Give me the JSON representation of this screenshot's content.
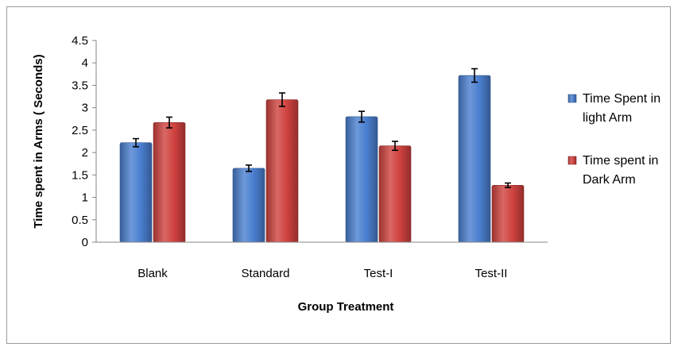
{
  "chart_data": {
    "type": "bar",
    "title": "",
    "xlabel": "Group Treatment",
    "ylabel": "Time spent in Arms ( Seconds)",
    "categories": [
      "Blank",
      "Standard",
      "Test-I",
      "Test-II"
    ],
    "ylim": [
      0,
      4.5
    ],
    "yticks": [
      0,
      0.5,
      1,
      1.5,
      2,
      2.5,
      3,
      3.5,
      4,
      4.5
    ],
    "ytick_labels": [
      "0",
      "0.5",
      "1",
      "1.5",
      "2",
      "2.5",
      "3",
      "3.5",
      "4",
      "4.5"
    ],
    "grid": false,
    "legend_position": "right",
    "series": [
      {
        "name": "Time Spent in light Arm",
        "legend_lines": [
          "Time Spent in",
          "light Arm"
        ],
        "color": "#4a7fd0",
        "values": [
          2.22,
          1.65,
          2.8,
          3.72
        ],
        "errors": [
          0.09,
          0.07,
          0.12,
          0.15
        ]
      },
      {
        "name": "Time spent in Dark Arm",
        "legend_lines": [
          "Time spent in",
          "Dark Arm"
        ],
        "color": "#d0423f",
        "values": [
          2.67,
          3.18,
          2.15,
          1.27
        ],
        "errors": [
          0.12,
          0.15,
          0.1,
          0.05
        ]
      }
    ]
  }
}
